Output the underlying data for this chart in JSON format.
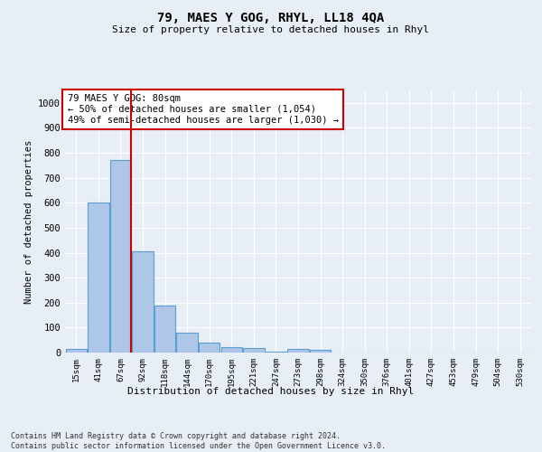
{
  "title": "79, MAES Y GOG, RHYL, LL18 4QA",
  "subtitle": "Size of property relative to detached houses in Rhyl",
  "xlabel": "Distribution of detached houses by size in Rhyl",
  "ylabel": "Number of detached properties",
  "bar_labels": [
    "15sqm",
    "41sqm",
    "67sqm",
    "92sqm",
    "118sqm",
    "144sqm",
    "170sqm",
    "195sqm",
    "221sqm",
    "247sqm",
    "273sqm",
    "298sqm",
    "324sqm",
    "350sqm",
    "376sqm",
    "401sqm",
    "427sqm",
    "453sqm",
    "479sqm",
    "504sqm",
    "530sqm"
  ],
  "bar_values": [
    15,
    600,
    770,
    405,
    190,
    78,
    40,
    20,
    18,
    5,
    15,
    10,
    0,
    0,
    0,
    0,
    0,
    0,
    0,
    0,
    0
  ],
  "bar_color": "#aec6e8",
  "bar_edge_color": "#5a9fd4",
  "vline_color": "#cc0000",
  "annotation_text": "79 MAES Y GOG: 80sqm\n← 50% of detached houses are smaller (1,054)\n49% of semi-detached houses are larger (1,030) →",
  "annotation_box_color": "#ffffff",
  "annotation_box_edge_color": "#cc0000",
  "ylim": [
    0,
    1050
  ],
  "yticks": [
    0,
    100,
    200,
    300,
    400,
    500,
    600,
    700,
    800,
    900,
    1000
  ],
  "background_color": "#e8eef5",
  "grid_color": "#ffffff",
  "footnote": "Contains HM Land Registry data © Crown copyright and database right 2024.\nContains public sector information licensed under the Open Government Licence v3.0."
}
